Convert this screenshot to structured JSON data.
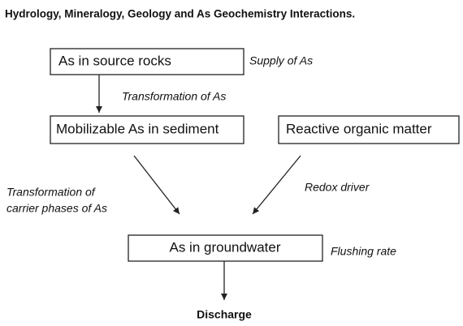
{
  "title": "Hydrology, Mineralogy, Geology and As Geochemistry Interactions.",
  "nodes": [
    {
      "label": "As in source rocks"
    },
    {
      "label": "Mobilizable As in sediment"
    },
    {
      "label": "Reactive organic matter"
    },
    {
      "label": "As in groundwater"
    },
    {
      "label": "Discharge"
    }
  ],
  "annotations": {
    "supply": "Supply of As",
    "transformation": "Transformation of As",
    "carrier": [
      "Transformation of",
      "carrier phases of As"
    ],
    "redox": "Redox driver",
    "flushing": "Flushing rate"
  }
}
